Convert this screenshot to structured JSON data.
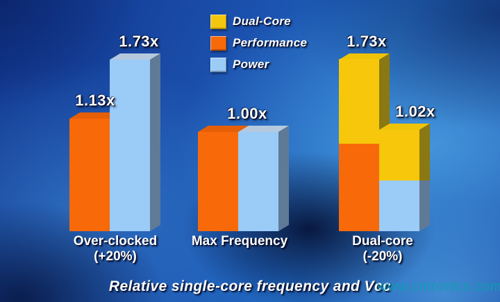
{
  "caption": "Relative single-core frequency and Vcc",
  "watermark": "www.cntronics.com",
  "legend": {
    "items": [
      {
        "label": "Dual-Core",
        "color": "#F4C60D"
      },
      {
        "label": "Performance",
        "color": "#F8690A"
      },
      {
        "label": "Power",
        "color": "#9BCBF7"
      }
    ]
  },
  "chart_data": {
    "type": "bar",
    "style": "3d-grouped-stacked",
    "value_suffix": "x",
    "legend_position": "top-center",
    "series": [
      "Dual-Core",
      "Performance",
      "Power"
    ],
    "series_styles": {
      "dual_core": {
        "front": "#F6C70B",
        "top": "#EFC308",
        "side": "#8A7812"
      },
      "performance": {
        "front": "#F8690A",
        "top": "#E65F07",
        "side": "#B04A06"
      },
      "power": {
        "front": "#9BCBF7",
        "top": "#B5C9DE",
        "side": "#5F7A97"
      }
    },
    "groups": [
      {
        "label": "Over-clocked",
        "sublabel": "(+20%)",
        "bars": [
          {
            "name": "performance",
            "total": 1.13,
            "value_label": "1.13x",
            "segments": [
              {
                "series": "performance",
                "value": 1.13
              }
            ]
          },
          {
            "name": "power",
            "total": 1.73,
            "value_label": "1.73x",
            "segments": [
              {
                "series": "power",
                "value": 1.73
              }
            ]
          }
        ]
      },
      {
        "label": "Max Frequency",
        "sublabel": "",
        "shared_value_label": "1.00x",
        "bars": [
          {
            "name": "performance",
            "total": 1.0,
            "segments": [
              {
                "series": "performance",
                "value": 1.0
              }
            ]
          },
          {
            "name": "power",
            "total": 1.0,
            "segments": [
              {
                "series": "power",
                "value": 1.0
              }
            ]
          }
        ]
      },
      {
        "label": "Dual-core",
        "sublabel": "(-20%)",
        "bars": [
          {
            "name": "performance",
            "total": 1.73,
            "value_label": "1.73x",
            "segments": [
              {
                "series": "performance",
                "value": 0.88
              },
              {
                "series": "dual_core",
                "value": 0.85
              }
            ]
          },
          {
            "name": "power",
            "total": 1.02,
            "value_label": "1.02x",
            "segments": [
              {
                "series": "power",
                "value": 0.51
              },
              {
                "series": "dual_core",
                "value": 0.51
              }
            ]
          }
        ]
      }
    ]
  }
}
